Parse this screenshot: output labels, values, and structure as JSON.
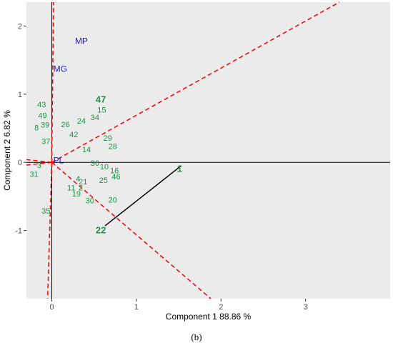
{
  "chart_data": {
    "type": "scatter",
    "xlabel": "Component 1 88.86 %",
    "ylabel": "Component 2 6.82 %",
    "xlim": [
      -0.3,
      4.0
    ],
    "ylim": [
      -2.0,
      2.35
    ],
    "x_ticks": [
      0,
      1,
      2,
      3
    ],
    "y_ticks": [
      -1,
      0,
      1,
      2
    ],
    "grid": false,
    "background": "#ebebeb",
    "genotype_color": "#1a9641",
    "variable_color": "#2020b0",
    "sector_line_color": "#ff0000",
    "genotypes": [
      {
        "label": "47",
        "x": 0.58,
        "y": 0.92,
        "bold": true
      },
      {
        "label": "15",
        "x": 0.59,
        "y": 0.77
      },
      {
        "label": "43",
        "x": -0.12,
        "y": 0.85
      },
      {
        "label": "49",
        "x": -0.11,
        "y": 0.69
      },
      {
        "label": "39",
        "x": -0.08,
        "y": 0.55
      },
      {
        "label": "8",
        "x": -0.18,
        "y": 0.51
      },
      {
        "label": "26",
        "x": 0.16,
        "y": 0.56
      },
      {
        "label": "24",
        "x": 0.35,
        "y": 0.61
      },
      {
        "label": "34",
        "x": 0.51,
        "y": 0.66
      },
      {
        "label": "42",
        "x": 0.26,
        "y": 0.41
      },
      {
        "label": "29",
        "x": 0.66,
        "y": 0.36
      },
      {
        "label": "28",
        "x": 0.72,
        "y": 0.24
      },
      {
        "label": "37",
        "x": -0.07,
        "y": 0.31
      },
      {
        "label": "14",
        "x": 0.41,
        "y": 0.19
      },
      {
        "label": "36",
        "x": 0.51,
        "y": -0.01
      },
      {
        "label": "10",
        "x": 0.62,
        "y": -0.06
      },
      {
        "label": "16",
        "x": 0.74,
        "y": -0.12
      },
      {
        "label": "46",
        "x": 0.76,
        "y": -0.21
      },
      {
        "label": "25",
        "x": 0.61,
        "y": -0.26
      },
      {
        "label": "4",
        "x": 0.31,
        "y": -0.24
      },
      {
        "label": "21",
        "x": 0.37,
        "y": -0.28
      },
      {
        "label": "11",
        "x": 0.23,
        "y": -0.37
      },
      {
        "label": "2",
        "x": 0.34,
        "y": -0.37
      },
      {
        "label": "19",
        "x": 0.29,
        "y": -0.46
      },
      {
        "label": "30",
        "x": 0.45,
        "y": -0.56
      },
      {
        "label": "20",
        "x": 0.72,
        "y": -0.55
      },
      {
        "label": "35",
        "x": -0.07,
        "y": -0.71
      },
      {
        "label": "3",
        "x": -0.15,
        "y": -0.04
      },
      {
        "label": "31",
        "x": -0.21,
        "y": -0.17
      },
      {
        "label": "1",
        "x": 1.51,
        "y": -0.1,
        "bold": true
      },
      {
        "label": "22",
        "x": 0.58,
        "y": -1.0,
        "bold": true
      }
    ],
    "variables": [
      {
        "label": "MP",
        "x": 0.35,
        "y": 1.78
      },
      {
        "label": "MG",
        "x": 0.1,
        "y": 1.37
      },
      {
        "label": "PL",
        "x": 0.08,
        "y": 0.03
      }
    ],
    "vector": {
      "from": [
        0.63,
        -0.93
      ],
      "to": [
        1.53,
        -0.05
      ]
    },
    "sector_rays": [
      {
        "to": [
          3.4,
          2.35
        ]
      },
      {
        "to": [
          1.88,
          -2.0
        ]
      },
      {
        "to": [
          -0.3,
          0.04
        ]
      },
      {
        "to": [
          -0.3,
          -0.04
        ]
      },
      {
        "to": [
          0.02,
          2.35
        ]
      },
      {
        "to": [
          -0.05,
          -2.0
        ]
      }
    ]
  },
  "caption": "(b)"
}
